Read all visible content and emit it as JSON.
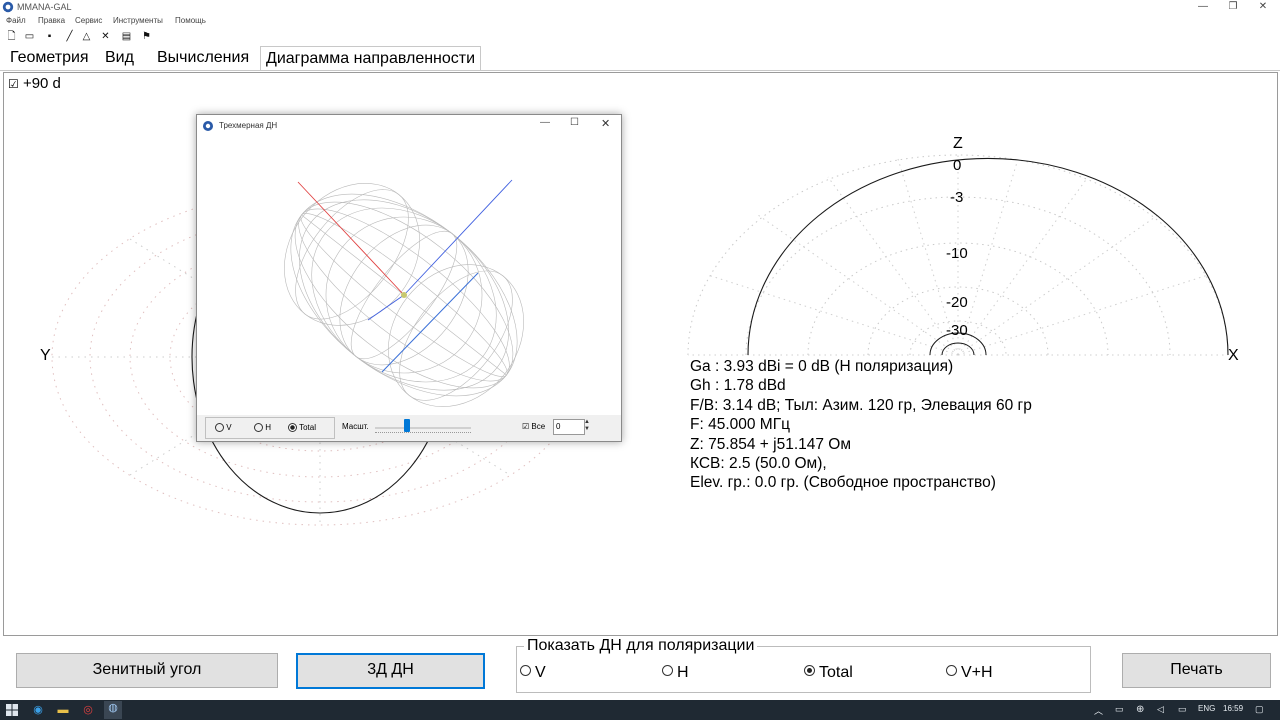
{
  "window": {
    "title": "MMANA-GAL",
    "controls": {
      "minimize": "—",
      "maximize": "❐",
      "close": "✕"
    }
  },
  "menu": [
    "Файл",
    "Правка",
    "Сервис",
    "Инструменты",
    "Помощь"
  ],
  "toolbar": [
    "new-file-icon",
    "open-folder-icon",
    "save-icon",
    "line-icon",
    "triangle-icon",
    "tools-icon",
    "table-icon",
    "run-icon"
  ],
  "tabs": [
    {
      "label": "Геометрия",
      "active": false
    },
    {
      "label": "Вид",
      "active": false
    },
    {
      "label": "Вычисления",
      "active": false
    },
    {
      "label": "Диаграмма направленности",
      "active": true
    }
  ],
  "zenith_check": {
    "checked": true,
    "label": "+90 d"
  },
  "horizontal_plot": {
    "y_label": "Y"
  },
  "vertical_plot": {
    "z_label": "Z",
    "x_label": "X",
    "ring_labels": [
      "0",
      "-3",
      "-10",
      "-20",
      "-30"
    ]
  },
  "info_lines": [
    "Ga : 3.93 dBi = 0 dB  (Н поляризация)",
    "Gh : 1.78 dBd",
    "F/B: 3.14 dB; Тыл: Азим. 120 гр, Элевация 60 гр",
    "F: 45.000 МГц",
    "Z: 75.854 + j51.147 Ом",
    "КСВ: 2.5 (50.0 Ом),",
    "Elev. гр.: 0.0 гр. (Свободное пространство)"
  ],
  "dialog_3d": {
    "title": "Трехмерная ДН",
    "radios": [
      {
        "label": "V",
        "checked": false
      },
      {
        "label": "H",
        "checked": false
      },
      {
        "label": "Total",
        "checked": true
      }
    ],
    "scale_label": "Масшт.",
    "scale_value": 0.33,
    "all_check": {
      "label": "Все",
      "checked": true
    },
    "spin_value": "0"
  },
  "buttons": {
    "zenith": "Зенитный угол",
    "pattern3d": "3Д   ДН",
    "print": "Печать"
  },
  "polarization": {
    "title": "Показать ДН для поляризации",
    "options": [
      {
        "label": "V",
        "checked": false
      },
      {
        "label": "H",
        "checked": false
      },
      {
        "label": "Total",
        "checked": true
      },
      {
        "label": "V+H",
        "checked": false
      }
    ]
  },
  "taskbar": {
    "language": "ENG",
    "time": "16:59"
  },
  "colors": {
    "accent": "#0078d7",
    "taskbar": "#1f2933",
    "axis_red": "#e04040",
    "axis_blue": "#4060e0",
    "mesh": "#b9b9b9"
  }
}
